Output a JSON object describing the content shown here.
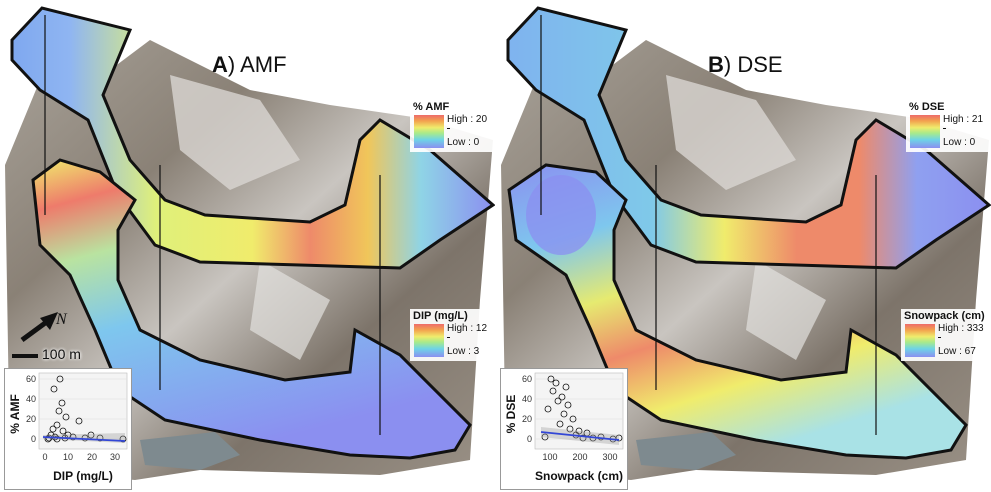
{
  "panels": [
    {
      "letter": "A",
      "title": "AMF",
      "legend_top": {
        "title": "% AMF",
        "high": "High : 20",
        "low": "Low : 0"
      },
      "legend_bottom": {
        "title": "DIP (mg/L)",
        "high": "High : 12",
        "low": "Low : 3"
      },
      "inset": {
        "ylabel": "% AMF",
        "xlabel": "DIP (mg/L)",
        "yticks": [
          "0",
          "20",
          "40",
          "60"
        ],
        "xticks": [
          "0",
          "10",
          "20",
          "30"
        ]
      }
    },
    {
      "letter": "B",
      "title": "DSE",
      "legend_top": {
        "title": "% DSE",
        "high": "High : 21",
        "low": "Low : 0"
      },
      "legend_bottom": {
        "title": "Snowpack (cm)",
        "high": "High : 333",
        "low": "Low : 67"
      },
      "inset": {
        "ylabel": "% DSE",
        "xlabel": "Snowpack (cm)",
        "yticks": [
          "0",
          "20",
          "40",
          "60"
        ],
        "xticks": [
          "100",
          "200",
          "300"
        ]
      }
    }
  ],
  "north_arrow": "N",
  "scale_bar": "100 m",
  "colors": {
    "high": "#ee6b6b",
    "mid": "#f0ec6c",
    "low": "#8b8ff0",
    "outline": "#111111"
  }
}
